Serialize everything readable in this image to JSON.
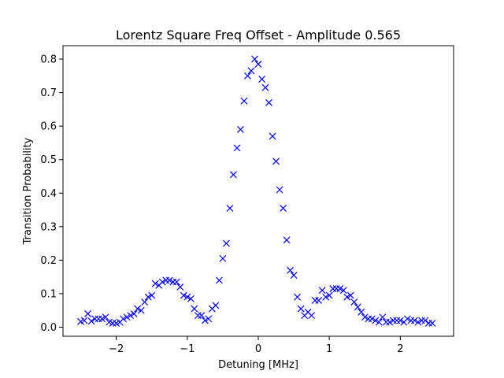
{
  "chart_data": {
    "type": "scatter",
    "title": "Lorentz Square Freq Offset - Amplitude 0.565",
    "xlabel": "Detuning [MHz]",
    "ylabel": "Transition Probability",
    "xlim": [
      -2.75,
      2.75
    ],
    "ylim": [
      -0.027,
      0.84
    ],
    "xticks": [
      -2,
      -1,
      0,
      1,
      2
    ],
    "xtick_labels": [
      "−2",
      "−1",
      "0",
      "1",
      "2"
    ],
    "yticks": [
      0.0,
      0.1,
      0.2,
      0.3,
      0.4,
      0.5,
      0.6,
      0.7,
      0.8
    ],
    "ytick_labels": [
      "0.0",
      "0.1",
      "0.2",
      "0.3",
      "0.4",
      "0.5",
      "0.6",
      "0.7",
      "0.8"
    ],
    "grid": false,
    "marker": "x",
    "color": "#0000ff",
    "series": [
      {
        "x": [
          -2.5,
          -2.45,
          -2.4,
          -2.35,
          -2.3,
          -2.25,
          -2.2,
          -2.15,
          -2.1,
          -2.05,
          -2.0,
          -1.95,
          -1.9,
          -1.85,
          -1.8,
          -1.75,
          -1.7,
          -1.65,
          -1.6,
          -1.55,
          -1.5,
          -1.45,
          -1.4,
          -1.35,
          -1.3,
          -1.25,
          -1.2,
          -1.15,
          -1.1,
          -1.05,
          -1.0,
          -0.95,
          -0.9,
          -0.85,
          -0.8,
          -0.75,
          -0.7,
          -0.65,
          -0.6,
          -0.55,
          -0.5,
          -0.45,
          -0.4,
          -0.35,
          -0.3,
          -0.25,
          -0.2,
          -0.15,
          -0.1,
          -0.05,
          0.0,
          0.05,
          0.1,
          0.15,
          0.2,
          0.25,
          0.3,
          0.35,
          0.4,
          0.45,
          0.5,
          0.55,
          0.6,
          0.65,
          0.7,
          0.75,
          0.8,
          0.85,
          0.9,
          0.95,
          1.0,
          1.05,
          1.1,
          1.15,
          1.2,
          1.25,
          1.3,
          1.35,
          1.4,
          1.45,
          1.5,
          1.55,
          1.6,
          1.65,
          1.7,
          1.75,
          1.8,
          1.85,
          1.9,
          1.95,
          2.0,
          2.05,
          2.1,
          2.15,
          2.2,
          2.25,
          2.3,
          2.35,
          2.4,
          2.45
        ],
        "y": [
          0.017,
          0.02,
          0.04,
          0.018,
          0.025,
          0.025,
          0.025,
          0.03,
          0.015,
          0.012,
          0.012,
          0.015,
          0.025,
          0.03,
          0.035,
          0.04,
          0.055,
          0.05,
          0.075,
          0.09,
          0.095,
          0.13,
          0.125,
          0.135,
          0.14,
          0.14,
          0.135,
          0.135,
          0.12,
          0.095,
          0.09,
          0.085,
          0.055,
          0.035,
          0.035,
          0.02,
          0.025,
          0.055,
          0.065,
          0.14,
          0.205,
          0.25,
          0.355,
          0.455,
          0.535,
          0.59,
          0.675,
          0.75,
          0.765,
          0.8,
          0.785,
          0.74,
          0.715,
          0.67,
          0.57,
          0.495,
          0.41,
          0.355,
          0.26,
          0.17,
          0.155,
          0.09,
          0.055,
          0.035,
          0.045,
          0.035,
          0.08,
          0.08,
          0.11,
          0.09,
          0.095,
          0.115,
          0.115,
          0.115,
          0.11,
          0.09,
          0.095,
          0.075,
          0.06,
          0.045,
          0.03,
          0.025,
          0.025,
          0.02,
          0.015,
          0.03,
          0.015,
          0.015,
          0.02,
          0.02,
          0.02,
          0.015,
          0.025,
          0.02,
          0.02,
          0.015,
          0.02,
          0.02,
          0.012,
          0.012
        ]
      }
    ]
  }
}
